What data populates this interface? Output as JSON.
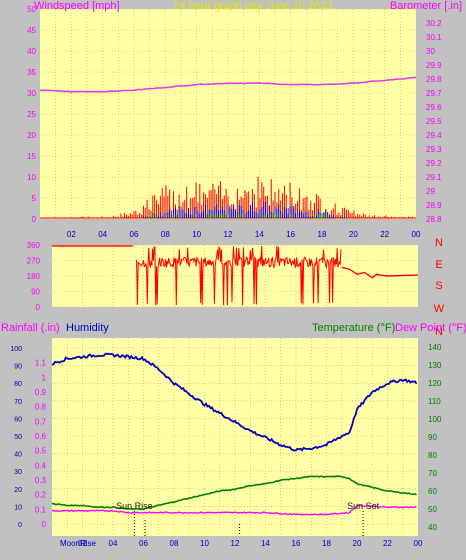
{
  "header": {
    "left_label": "Windspeed [mph]",
    "center_label": "24 hour graph day   June 10 2023",
    "right_label": "Barometer [.in]"
  },
  "colors": {
    "plot_bg": "#ffffa8",
    "grid": "#f0a060",
    "wind": "#ff0000",
    "gust": "#0000ff",
    "wind_green": "#008000",
    "barometer": "#e040e0",
    "direction": "#ff0000",
    "humidity": "#0000c0",
    "temperature": "#008000",
    "dewpoint": "#ff00ff",
    "header_yellow": "#e8e800"
  },
  "chart_data": [
    {
      "type": "line",
      "name": "wind-barometer",
      "x_ticks": [
        "02",
        "04",
        "06",
        "08",
        "10",
        "12",
        "14",
        "16",
        "18",
        "20",
        "22",
        "00"
      ],
      "x_range": [
        0,
        24
      ],
      "y_left_range": [
        0,
        50
      ],
      "y_left_ticks": [
        0,
        5,
        10,
        15,
        20,
        25,
        30,
        35,
        40,
        45,
        50
      ],
      "y_right_range": [
        28.8,
        30.3
      ],
      "y_right_ticks": [
        "28.8",
        "28.9",
        "29",
        "29.1",
        "29.2",
        "29.3",
        "29.4",
        "29.5",
        "29.6",
        "29.7",
        "29.8",
        "29.9",
        "30",
        "30.1",
        "30.2"
      ],
      "barometer": {
        "x": [
          0,
          2,
          4,
          6,
          8,
          10,
          12,
          14,
          16,
          18,
          20,
          22,
          24
        ],
        "y": [
          29.72,
          29.71,
          29.71,
          29.72,
          29.74,
          29.76,
          29.77,
          29.77,
          29.76,
          29.76,
          29.77,
          29.79,
          29.81
        ]
      },
      "wind_envelope": {
        "x": [
          0,
          2,
          4,
          5,
          6,
          7,
          8,
          9,
          10,
          11,
          12,
          13,
          14,
          15,
          16,
          17,
          18,
          19,
          20,
          21,
          22,
          23,
          24
        ],
        "y": [
          0,
          0.5,
          0.5,
          1,
          2,
          5,
          7,
          8,
          8,
          8,
          8,
          9,
          10,
          8,
          8,
          7,
          5,
          3,
          2,
          1,
          1,
          0.5,
          0.5
        ]
      },
      "gust_envelope": {
        "x": [
          0,
          6,
          7,
          8,
          9,
          10,
          11,
          12,
          13,
          14,
          15,
          16,
          17,
          18,
          19,
          20,
          24
        ],
        "y": [
          0,
          0,
          1,
          2,
          3,
          3,
          3,
          3,
          3,
          4,
          3,
          3,
          2,
          2,
          1,
          0,
          0
        ]
      }
    },
    {
      "type": "line",
      "name": "wind-direction",
      "x_range": [
        0,
        24
      ],
      "y_ticks": [
        0,
        90,
        180,
        270,
        360
      ],
      "y_range": [
        0,
        360
      ],
      "compass_labels": [
        "N",
        "W",
        "S",
        "E",
        "N"
      ],
      "segments": [
        {
          "x": [
            0,
            5.3
          ],
          "y": [
            355,
            355
          ]
        },
        {
          "x": [
            19,
            19.5,
            20,
            20.5,
            21,
            21.3,
            21.5,
            22,
            24
          ],
          "y": [
            230,
            220,
            190,
            200,
            170,
            190,
            185,
            180,
            185
          ]
        }
      ],
      "noisy_range": [
        5.5,
        19
      ],
      "noisy_base": 260
    },
    {
      "type": "line",
      "name": "rain-humidity-temperature",
      "x_ticks": [
        "02",
        "04",
        "06",
        "08",
        "10",
        "12",
        "14",
        "16",
        "18",
        "20",
        "22",
        "00"
      ],
      "x_range": [
        0,
        24
      ],
      "left_label_rain": "Rainfall (.in)",
      "left_label_humidity": "Humidity",
      "right_label_temp": "Temperature (°F)",
      "right_label_dew": "Dew Point (°F)",
      "humidity_ticks": [
        0,
        10,
        20,
        30,
        40,
        50,
        60,
        70,
        80,
        90,
        100
      ],
      "rain_ticks": [
        "0",
        "0.1",
        "0.2",
        "0.3",
        "0.4",
        "0.5",
        "0.6",
        "0.7",
        "0.8",
        "0.9",
        "1",
        "1.1"
      ],
      "rain_range": [
        0,
        1.2
      ],
      "temp_ticks": [
        40,
        50,
        60,
        70,
        80,
        90,
        100,
        110,
        120,
        130,
        140
      ],
      "temp_range": [
        35,
        145
      ],
      "humidity": {
        "x": [
          0,
          1,
          2,
          3,
          4,
          5,
          6,
          7,
          8,
          9,
          10,
          11,
          12,
          13,
          14,
          15,
          16,
          17,
          18,
          19,
          19.5,
          20,
          21,
          22,
          23,
          24
        ],
        "y": [
          91,
          94,
          95,
          96,
          96,
          95,
          94,
          88,
          80,
          74,
          68,
          63,
          58,
          53,
          49,
          45,
          42,
          43,
          45,
          50,
          52,
          65,
          75,
          80,
          82,
          80
        ]
      },
      "temperature": {
        "x": [
          0,
          1,
          2,
          3,
          4,
          5,
          6,
          7,
          8,
          9,
          10,
          11,
          12,
          13,
          14,
          15,
          16,
          17,
          18,
          19,
          19.5,
          20,
          21,
          22,
          23,
          24
        ],
        "y": [
          53,
          52,
          52,
          51,
          51,
          50,
          50,
          52,
          54,
          56,
          58,
          60,
          61,
          63,
          64,
          66,
          67,
          68,
          68,
          68,
          67,
          64,
          62,
          60,
          59,
          58
        ]
      },
      "dewpoint": {
        "x": [
          0,
          2,
          4,
          5,
          6,
          8,
          10,
          12,
          14,
          16,
          18,
          19.5,
          20,
          22,
          24
        ],
        "y": [
          49,
          49,
          49,
          48,
          48,
          48,
          48,
          48,
          48,
          47,
          47,
          48,
          52,
          51,
          51
        ]
      },
      "annotations": {
        "sunrise_label": "Sun Rise",
        "sunset_label": "Sun Set",
        "moonrise_label": "MoonRise"
      },
      "sunrise_x": 5.4,
      "sunset_x": 20.4
    }
  ]
}
